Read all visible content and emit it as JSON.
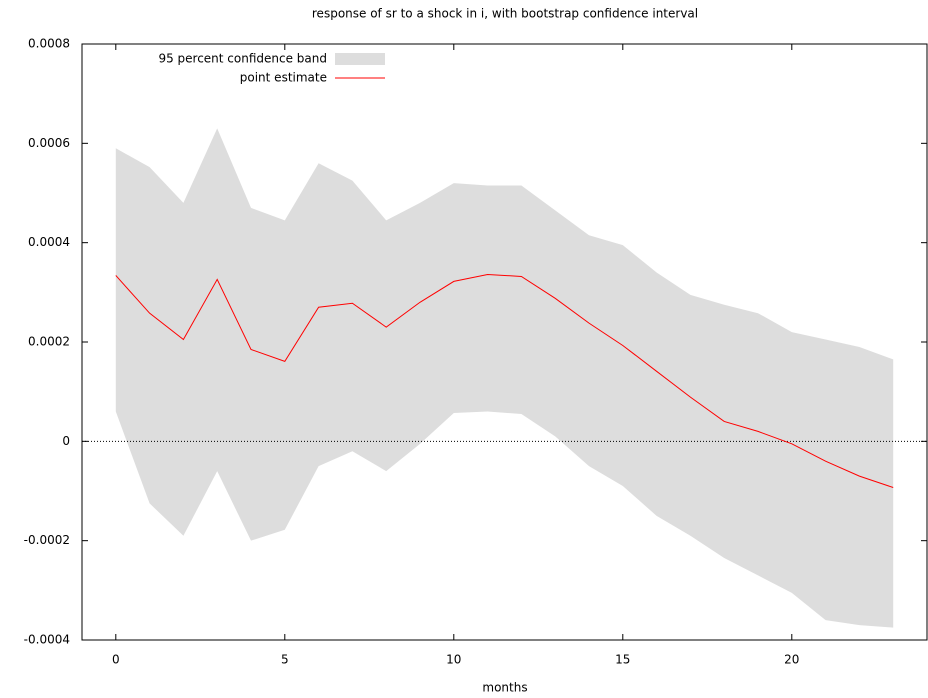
{
  "chart_data": {
    "type": "band-line",
    "title": "response of sr to a shock in i, with bootstrap confidence interval",
    "x_label": "months",
    "x": [
      0,
      1,
      2,
      3,
      4,
      5,
      6,
      7,
      8,
      9,
      10,
      11,
      12,
      13,
      14,
      15,
      16,
      17,
      18,
      19,
      20,
      21,
      22,
      23
    ],
    "series": [
      {
        "name": "95 percent confidence band",
        "color": "#dddddd",
        "upper": [
          0.00059,
          0.000552,
          0.00048,
          0.00063,
          0.00047,
          0.000445,
          0.00056,
          0.000525,
          0.000445,
          0.00048,
          0.00052,
          0.000515,
          0.000515,
          0.000465,
          0.000415,
          0.000395,
          0.00034,
          0.000295,
          0.000275,
          0.000258,
          0.00022,
          0.000205,
          0.00019,
          0.000165
        ],
        "lower": [
          6e-05,
          -0.000125,
          -0.00019,
          -6e-05,
          -0.0002,
          -0.000178,
          -5e-05,
          -2e-05,
          -6e-05,
          -5e-06,
          5.7e-05,
          6e-05,
          5.5e-05,
          1e-05,
          -5e-05,
          -9e-05,
          -0.00015,
          -0.00019,
          -0.000235,
          -0.00027,
          -0.000305,
          -0.00036,
          -0.00037,
          -0.000375
        ]
      },
      {
        "name": "point estimate",
        "color": "#ff0000",
        "values": [
          0.000334,
          0.000258,
          0.000205,
          0.000326,
          0.000185,
          0.000161,
          0.00027,
          0.000278,
          0.00023,
          0.00028,
          0.000322,
          0.000336,
          0.000332,
          0.000288,
          0.000238,
          0.000193,
          0.000141,
          8.9e-05,
          4e-05,
          2e-05,
          -5e-06,
          -4e-05,
          -7e-05,
          -9.3e-05
        ]
      }
    ],
    "xlim": [
      -1,
      24
    ],
    "xticks": [
      0,
      5,
      10,
      15,
      20
    ],
    "ylim": [
      -0.0004,
      0.0008
    ],
    "yticks": [
      -0.0004,
      -0.0002,
      0,
      0.0002,
      0.0004,
      0.0006,
      0.0008
    ],
    "zero_line": true,
    "legend": "top-left"
  }
}
